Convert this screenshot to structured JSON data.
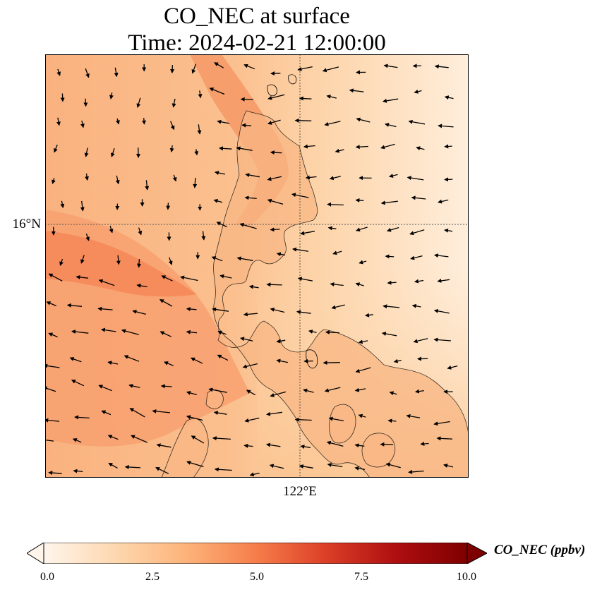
{
  "title": {
    "line1": "CO_NEC at surface",
    "line2": "Time: 2024-02-21 12:00:00"
  },
  "axes": {
    "lat_label": "16°N",
    "lon_label": "122°E"
  },
  "colorbar": {
    "label": "CO_NEC (ppbv)",
    "ticks": [
      "0.0",
      "2.5",
      "5.0",
      "7.5",
      "10.0"
    ],
    "vmin": 0,
    "vmax": 10,
    "extend": "both",
    "colors": [
      "#fff5eb",
      "#fdd8b0",
      "#fdb47b",
      "#f67e4b",
      "#dc3f27",
      "#ae0e10",
      "#7f0000"
    ]
  },
  "map": {
    "land_color": "#f7b27e",
    "gridlines": true,
    "wind_vectors": true
  }
}
